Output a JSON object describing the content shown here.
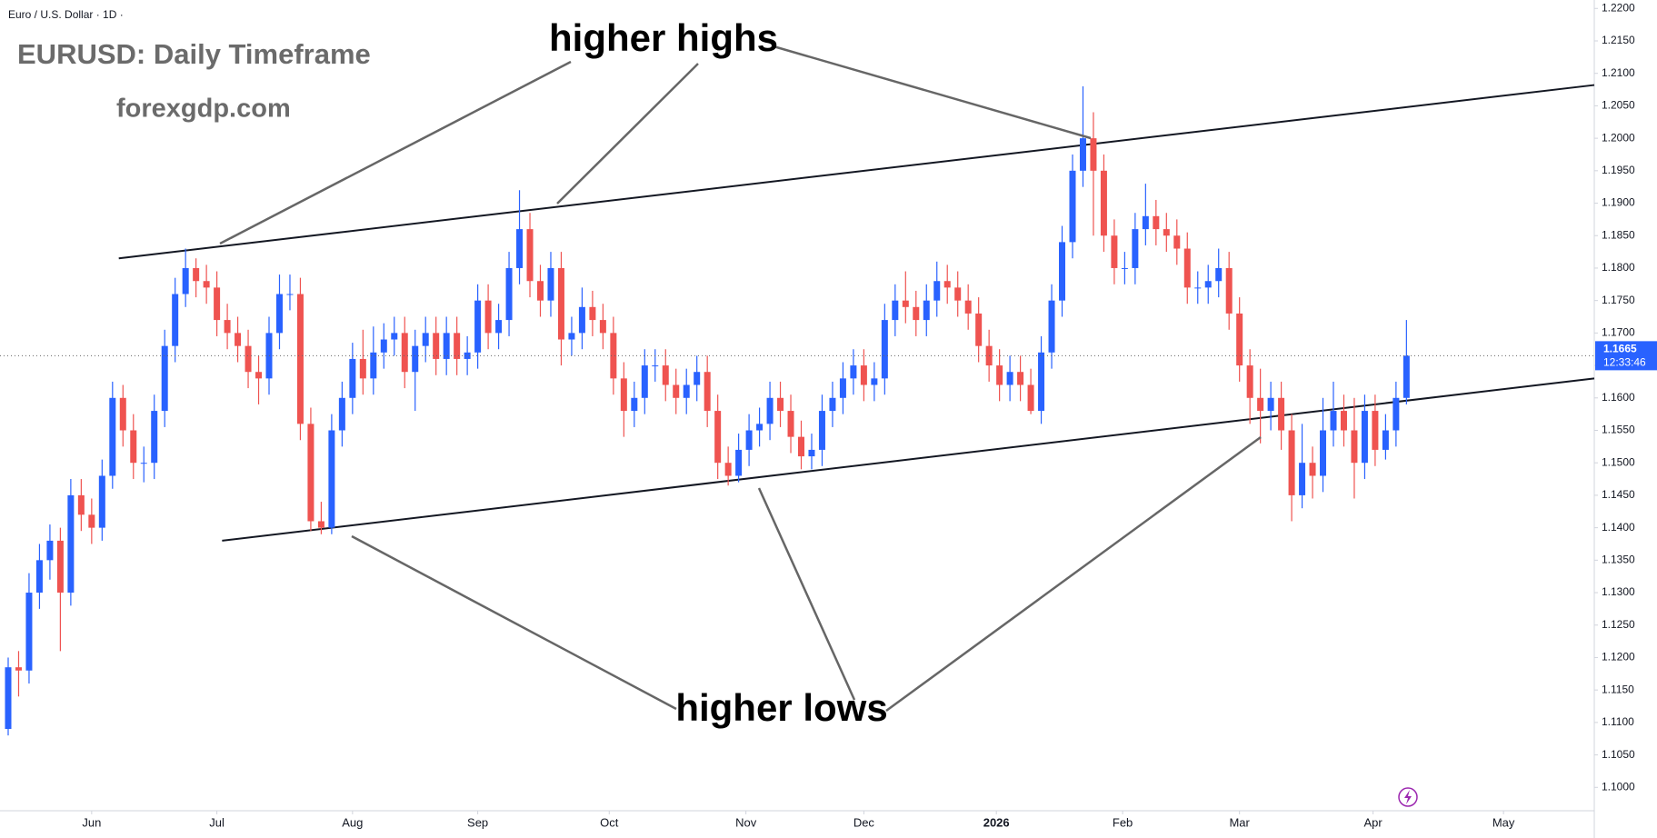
{
  "chart_data": {
    "type": "candlestick",
    "symbol": "Euro / U.S. Dollar · 1D ·",
    "title": "EURUSD: Daily Timeframe",
    "subtitle": "forexgdp.com",
    "annotations": [
      "higher highs",
      "higher lows"
    ],
    "countdown": "12:33:46",
    "up_color": "#2962ff",
    "down_color": "#ef5350",
    "grid": false,
    "xlim": [
      0,
      152
    ],
    "ylim": [
      1.0964,
      1.2213
    ],
    "xticks": [
      {
        "value": 8,
        "label": "Jun"
      },
      {
        "value": 20,
        "label": "Jul"
      },
      {
        "value": 33,
        "label": "Aug"
      },
      {
        "value": 45,
        "label": "Sep"
      },
      {
        "value": 57.6,
        "label": "Oct"
      },
      {
        "value": 70.7,
        "label": "Nov"
      },
      {
        "value": 82,
        "label": "Dec"
      },
      {
        "value": 94.7,
        "label": "2026"
      },
      {
        "value": 106.8,
        "label": "Feb"
      },
      {
        "value": 118,
        "label": "Mar"
      },
      {
        "value": 130.8,
        "label": "Apr"
      },
      {
        "value": 143.3,
        "label": "May"
      }
    ],
    "yticks": [
      {
        "value": 1.1,
        "label": "1.1000"
      },
      {
        "value": 1.105,
        "label": "1.1050"
      },
      {
        "value": 1.11,
        "label": "1.1100"
      },
      {
        "value": 1.115,
        "label": "1.1150"
      },
      {
        "value": 1.12,
        "label": "1.1200"
      },
      {
        "value": 1.125,
        "label": "1.1250"
      },
      {
        "value": 1.13,
        "label": "1.1300"
      },
      {
        "value": 1.135,
        "label": "1.1350"
      },
      {
        "value": 1.14,
        "label": "1.1400"
      },
      {
        "value": 1.145,
        "label": "1.1450"
      },
      {
        "value": 1.15,
        "label": "1.1500"
      },
      {
        "value": 1.155,
        "label": "1.1550"
      },
      {
        "value": 1.16,
        "label": "1.1600"
      },
      {
        "value": 1.165,
        "label": "1.1650"
      },
      {
        "value": 1.17,
        "label": "1.1700"
      },
      {
        "value": 1.175,
        "label": "1.1750"
      },
      {
        "value": 1.18,
        "label": "1.1800"
      },
      {
        "value": 1.185,
        "label": "1.1850"
      },
      {
        "value": 1.19,
        "label": "1.1900"
      },
      {
        "value": 1.195,
        "label": "1.1950"
      },
      {
        "value": 1.2,
        "label": "1.2000"
      },
      {
        "value": 1.205,
        "label": "1.2050"
      },
      {
        "value": 1.21,
        "label": "1.2100"
      },
      {
        "value": 1.215,
        "label": "1.2150"
      },
      {
        "value": 1.22,
        "label": "1.2200"
      }
    ],
    "trendlines": [
      {
        "x": [
          10.6,
          152
        ],
        "y": [
          1.1815,
          1.2082
        ]
      },
      {
        "x": [
          20.5,
          152
        ],
        "y": [
          1.138,
          1.163
        ]
      }
    ],
    "x": [
      0,
      1,
      2,
      3,
      4,
      5,
      6,
      7,
      8,
      9,
      10,
      11,
      12,
      13,
      14,
      15,
      16,
      17,
      18,
      19,
      20,
      21,
      22,
      23,
      24,
      25,
      26,
      27,
      28,
      29,
      30,
      31,
      32,
      33,
      34,
      35,
      36,
      37,
      38,
      39,
      40,
      41,
      42,
      43,
      44,
      45,
      46,
      47,
      48,
      49,
      50,
      51,
      52,
      53,
      54,
      55,
      56,
      57,
      58,
      59,
      60,
      61,
      62,
      63,
      64,
      65,
      66,
      67,
      68,
      69,
      70,
      71,
      72,
      73,
      74,
      75,
      76,
      77,
      78,
      79,
      80,
      81,
      82,
      83,
      84,
      85,
      86,
      87,
      88,
      89,
      90,
      91,
      92,
      93,
      94,
      95,
      96,
      97,
      98,
      99,
      100,
      101,
      102,
      103,
      104,
      105,
      106,
      107,
      108,
      109,
      110,
      111,
      112,
      113,
      114,
      115,
      116,
      117,
      118,
      119,
      120,
      121,
      122,
      123,
      124,
      125,
      126,
      127,
      128,
      129,
      130,
      131,
      132,
      133,
      134
    ],
    "open": [
      1.109,
      1.1185,
      1.118,
      1.13,
      1.135,
      1.138,
      1.13,
      1.145,
      1.142,
      1.14,
      1.148,
      1.16,
      1.155,
      1.15,
      1.15,
      1.158,
      1.168,
      1.176,
      1.18,
      1.178,
      1.177,
      1.172,
      1.17,
      1.168,
      1.164,
      1.163,
      1.17,
      1.176,
      1.176,
      1.156,
      1.141,
      1.14,
      1.155,
      1.16,
      1.166,
      1.163,
      1.167,
      1.169,
      1.17,
      1.164,
      1.168,
      1.17,
      1.166,
      1.17,
      1.166,
      1.167,
      1.175,
      1.17,
      1.172,
      1.18,
      1.186,
      1.178,
      1.175,
      1.18,
      1.169,
      1.17,
      1.174,
      1.172,
      1.17,
      1.163,
      1.158,
      1.16,
      1.165,
      1.165,
      1.162,
      1.16,
      1.162,
      1.164,
      1.158,
      1.15,
      1.148,
      1.152,
      1.155,
      1.156,
      1.16,
      1.158,
      1.154,
      1.151,
      1.152,
      1.158,
      1.16,
      1.163,
      1.165,
      1.162,
      1.163,
      1.172,
      1.175,
      1.174,
      1.172,
      1.175,
      1.178,
      1.177,
      1.175,
      1.173,
      1.168,
      1.165,
      1.162,
      1.164,
      1.162,
      1.158,
      1.167,
      1.175,
      1.184,
      1.195,
      1.2,
      1.195,
      1.185,
      1.18,
      1.18,
      1.186,
      1.188,
      1.186,
      1.185,
      1.183,
      1.177,
      1.177,
      1.178,
      1.18,
      1.173,
      1.165,
      1.16,
      1.158,
      1.16,
      1.155,
      1.145,
      1.15,
      1.148,
      1.155,
      1.158,
      1.155,
      1.15,
      1.158,
      1.152,
      1.155,
      1.16
    ],
    "high": [
      1.12,
      1.121,
      1.133,
      1.1375,
      1.1405,
      1.14,
      1.1475,
      1.1475,
      1.1445,
      1.1505,
      1.1625,
      1.162,
      1.1575,
      1.1525,
      1.1605,
      1.1705,
      1.1785,
      1.183,
      1.1815,
      1.1805,
      1.1795,
      1.1745,
      1.1725,
      1.1705,
      1.1665,
      1.1725,
      1.179,
      1.179,
      1.1785,
      1.1585,
      1.144,
      1.1575,
      1.1625,
      1.1685,
      1.1705,
      1.171,
      1.1715,
      1.1725,
      1.1725,
      1.1705,
      1.1725,
      1.1725,
      1.1725,
      1.1725,
      1.1695,
      1.1775,
      1.1775,
      1.1745,
      1.1825,
      1.192,
      1.1885,
      1.1805,
      1.1825,
      1.1825,
      1.1725,
      1.177,
      1.1765,
      1.1745,
      1.1725,
      1.1655,
      1.1625,
      1.1675,
      1.1675,
      1.1675,
      1.1645,
      1.1645,
      1.1665,
      1.1665,
      1.1605,
      1.1525,
      1.1545,
      1.1575,
      1.1585,
      1.1625,
      1.1625,
      1.1605,
      1.1565,
      1.1545,
      1.1605,
      1.1625,
      1.1655,
      1.1675,
      1.1675,
      1.1655,
      1.1745,
      1.1775,
      1.1795,
      1.1765,
      1.1775,
      1.181,
      1.1805,
      1.1795,
      1.1775,
      1.1755,
      1.1705,
      1.1675,
      1.1665,
      1.1665,
      1.1645,
      1.1695,
      1.1775,
      1.1865,
      1.1975,
      1.208,
      1.204,
      1.1975,
      1.1875,
      1.1825,
      1.1885,
      1.193,
      1.1905,
      1.1885,
      1.1875,
      1.1855,
      1.1795,
      1.1805,
      1.183,
      1.1825,
      1.1755,
      1.1675,
      1.1645,
      1.1625,
      1.1625,
      1.1575,
      1.156,
      1.1525,
      1.16,
      1.1625,
      1.1605,
      1.16,
      1.1605,
      1.1605,
      1.1575,
      1.1625,
      1.172
    ],
    "low": [
      1.108,
      1.114,
      1.116,
      1.1275,
      1.132,
      1.121,
      1.128,
      1.1395,
      1.1375,
      1.138,
      1.146,
      1.1525,
      1.1475,
      1.147,
      1.1475,
      1.1555,
      1.1655,
      1.174,
      1.1755,
      1.1745,
      1.1695,
      1.1675,
      1.1655,
      1.1615,
      1.159,
      1.1605,
      1.1675,
      1.1735,
      1.1535,
      1.1395,
      1.139,
      1.139,
      1.1525,
      1.1575,
      1.1605,
      1.1605,
      1.1645,
      1.1665,
      1.1615,
      1.158,
      1.1655,
      1.1635,
      1.1635,
      1.1635,
      1.1635,
      1.1645,
      1.1675,
      1.1675,
      1.1695,
      1.1775,
      1.1755,
      1.1725,
      1.1725,
      1.165,
      1.1665,
      1.1675,
      1.1695,
      1.1675,
      1.1605,
      1.154,
      1.1555,
      1.1575,
      1.1625,
      1.1595,
      1.1575,
      1.1575,
      1.1595,
      1.1555,
      1.1475,
      1.1465,
      1.147,
      1.1495,
      1.1525,
      1.1535,
      1.1555,
      1.1515,
      1.149,
      1.149,
      1.1495,
      1.1555,
      1.1575,
      1.1605,
      1.1595,
      1.1595,
      1.1605,
      1.1695,
      1.1715,
      1.1695,
      1.1695,
      1.1725,
      1.1745,
      1.1725,
      1.1705,
      1.1655,
      1.1625,
      1.1595,
      1.1595,
      1.1595,
      1.1575,
      1.156,
      1.1645,
      1.1725,
      1.1815,
      1.1925,
      1.185,
      1.1825,
      1.1775,
      1.1775,
      1.1775,
      1.1835,
      1.1835,
      1.1825,
      1.1805,
      1.1745,
      1.1745,
      1.1745,
      1.1755,
      1.1705,
      1.1625,
      1.156,
      1.153,
      1.155,
      1.152,
      1.141,
      1.143,
      1.1445,
      1.1455,
      1.1525,
      1.1525,
      1.1445,
      1.1475,
      1.1495,
      1.1505,
      1.1525,
      1.159
    ],
    "close": [
      1.1185,
      1.118,
      1.13,
      1.135,
      1.138,
      1.13,
      1.145,
      1.142,
      1.14,
      1.148,
      1.16,
      1.155,
      1.15,
      1.15,
      1.158,
      1.168,
      1.176,
      1.18,
      1.178,
      1.177,
      1.172,
      1.17,
      1.168,
      1.164,
      1.163,
      1.17,
      1.176,
      1.176,
      1.156,
      1.141,
      1.14,
      1.155,
      1.16,
      1.166,
      1.163,
      1.167,
      1.169,
      1.17,
      1.164,
      1.168,
      1.17,
      1.166,
      1.17,
      1.166,
      1.167,
      1.175,
      1.17,
      1.172,
      1.18,
      1.186,
      1.178,
      1.175,
      1.18,
      1.169,
      1.17,
      1.174,
      1.172,
      1.17,
      1.163,
      1.158,
      1.16,
      1.165,
      1.165,
      1.162,
      1.16,
      1.162,
      1.164,
      1.158,
      1.15,
      1.148,
      1.152,
      1.155,
      1.156,
      1.16,
      1.158,
      1.154,
      1.151,
      1.152,
      1.158,
      1.16,
      1.163,
      1.165,
      1.162,
      1.163,
      1.172,
      1.175,
      1.174,
      1.172,
      1.175,
      1.178,
      1.177,
      1.175,
      1.173,
      1.168,
      1.165,
      1.162,
      1.164,
      1.162,
      1.158,
      1.167,
      1.175,
      1.184,
      1.195,
      1.2,
      1.195,
      1.185,
      1.18,
      1.18,
      1.186,
      1.188,
      1.186,
      1.185,
      1.183,
      1.177,
      1.177,
      1.178,
      1.18,
      1.173,
      1.165,
      1.16,
      1.158,
      1.16,
      1.155,
      1.145,
      1.15,
      1.148,
      1.155,
      1.158,
      1.155,
      1.15,
      1.158,
      1.152,
      1.155,
      1.16,
      1.1665
    ]
  }
}
